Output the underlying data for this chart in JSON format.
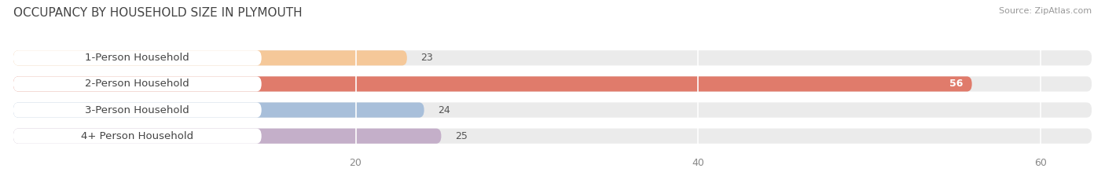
{
  "title": "OCCUPANCY BY HOUSEHOLD SIZE IN PLYMOUTH",
  "source": "Source: ZipAtlas.com",
  "categories": [
    "1-Person Household",
    "2-Person Household",
    "3-Person Household",
    "4+ Person Household"
  ],
  "values": [
    23,
    56,
    24,
    25
  ],
  "bar_colors": [
    "#f5c899",
    "#e07b6b",
    "#a8bfda",
    "#c4afc9"
  ],
  "xlim": [
    0,
    63
  ],
  "xticks": [
    20,
    40,
    60
  ],
  "background_color": "#ffffff",
  "bar_background_color": "#ebebeb",
  "title_fontsize": 11,
  "source_fontsize": 8,
  "bar_label_fontsize": 9.5,
  "value_label_fontsize": 9,
  "tick_fontsize": 9
}
